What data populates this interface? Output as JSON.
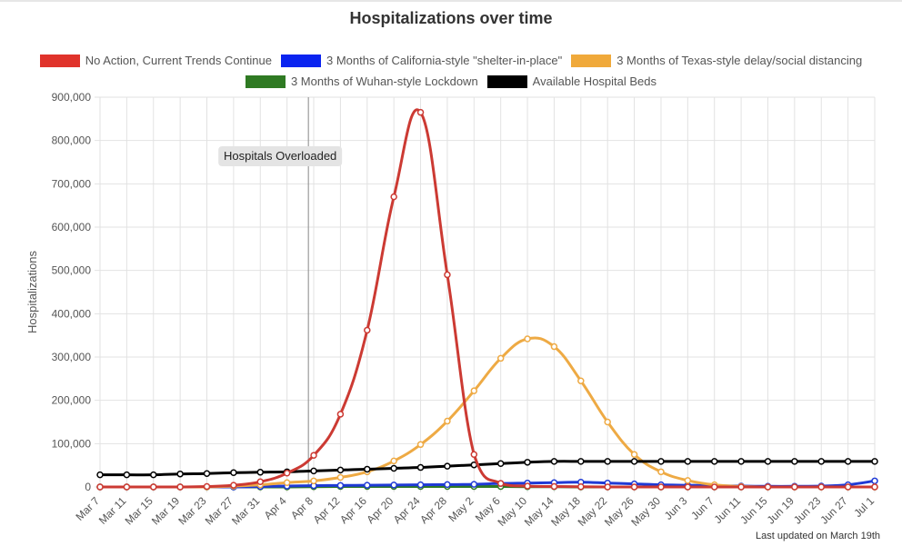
{
  "title": "Hospitalizations over time",
  "footer": "Last updated on March 19th",
  "chart_data": {
    "type": "line",
    "title": "Hospitalizations over time",
    "xlabel": "",
    "ylabel": "Hospitalizations",
    "ylim": [
      0,
      900000
    ],
    "yticks": [
      "0",
      "100,000",
      "200,000",
      "300,000",
      "400,000",
      "500,000",
      "600,000",
      "700,000",
      "800,000",
      "900,000"
    ],
    "legend_position": "top",
    "grid": true,
    "categories": [
      "Mar 7",
      "Mar 11",
      "Mar 15",
      "Mar 19",
      "Mar 23",
      "Mar 27",
      "Mar 31",
      "Apr 4",
      "Apr 8",
      "Apr 12",
      "Apr 16",
      "Apr 20",
      "Apr 24",
      "Apr 28",
      "May 2",
      "May 6",
      "May 10",
      "May 14",
      "May 18",
      "May 22",
      "May 26",
      "May 30",
      "Jun 3",
      "Jun 7",
      "Jun 11",
      "Jun 15",
      "Jun 19",
      "Jun 23",
      "Jun 27",
      "Jul 1"
    ],
    "annotation": {
      "label": "Hospitals Overloaded",
      "x_index": 7.8
    },
    "series": [
      {
        "name": "No Action, Current Trends Continue",
        "color": "#e0332b",
        "line_color": "#cc3a33",
        "values": [
          0,
          0,
          0,
          0,
          0,
          0,
          0,
          0,
          0,
          0,
          0,
          0,
          0,
          0,
          0,
          0,
          0,
          0,
          0,
          0,
          0,
          0,
          0,
          0,
          0,
          0,
          0,
          0,
          0,
          0
        ]
      },
      {
        "name": "3 Months of California-style \"shelter-in-place\"",
        "color": "#0a24f0",
        "line_color": "#1f3ad6",
        "values": [
          0,
          0,
          0,
          0,
          0,
          0,
          1000,
          2000,
          3000,
          3500,
          4000,
          4500,
          5000,
          5500,
          6000,
          8000,
          9000,
          10000,
          11000,
          9000,
          7000,
          5000,
          4000,
          3000,
          2000,
          1500,
          1500,
          2000,
          5000,
          14000
        ]
      },
      {
        "name": "3 Months of Texas-style delay/social distancing",
        "color": "#f0a93a",
        "line_color": "#eeaa44",
        "values": [
          0,
          0,
          0,
          0,
          0,
          2000,
          5000,
          10000,
          14000,
          22000,
          35000,
          60000,
          98000,
          152000,
          222000,
          297000,
          342000,
          324000,
          245000,
          150000,
          75000,
          35000,
          15000,
          5000,
          1000,
          0,
          0,
          0,
          0,
          0
        ]
      },
      {
        "name": "3 Months of Wuhan-style Lockdown",
        "color": "#2f7a23",
        "line_color": "#2f7a23",
        "values": [
          0,
          0,
          0,
          0,
          0,
          0,
          0,
          0,
          500,
          1000,
          1000,
          1000,
          1000,
          1000,
          1000,
          1000,
          500,
          500,
          0,
          0,
          0,
          0,
          0,
          0,
          0,
          0,
          0,
          0,
          0,
          0
        ]
      },
      {
        "name": "Available Hospital Beds",
        "color": "#000000",
        "line_color": "#000000",
        "values": [
          28000,
          28000,
          28000,
          30000,
          31000,
          33000,
          34000,
          35000,
          37000,
          39000,
          41000,
          43000,
          45000,
          48000,
          51000,
          54000,
          57000,
          59000,
          59000,
          59000,
          59000,
          59000,
          59000,
          59000,
          59000,
          59000,
          59000,
          59000,
          59000,
          59000
        ]
      },
      {
        "name": "No Action, Current Trends Continue",
        "color": "#e0332b",
        "line_color": "#cc3a33",
        "draw_only": true,
        "values": [
          0,
          0,
          0,
          0,
          1000,
          4000,
          12000,
          32000,
          73000,
          168000,
          362000,
          670000,
          865000,
          490000,
          75000,
          8000,
          2000,
          1000,
          500,
          0,
          0,
          0,
          0,
          0,
          0,
          0,
          0,
          0,
          0,
          0
        ]
      }
    ]
  }
}
